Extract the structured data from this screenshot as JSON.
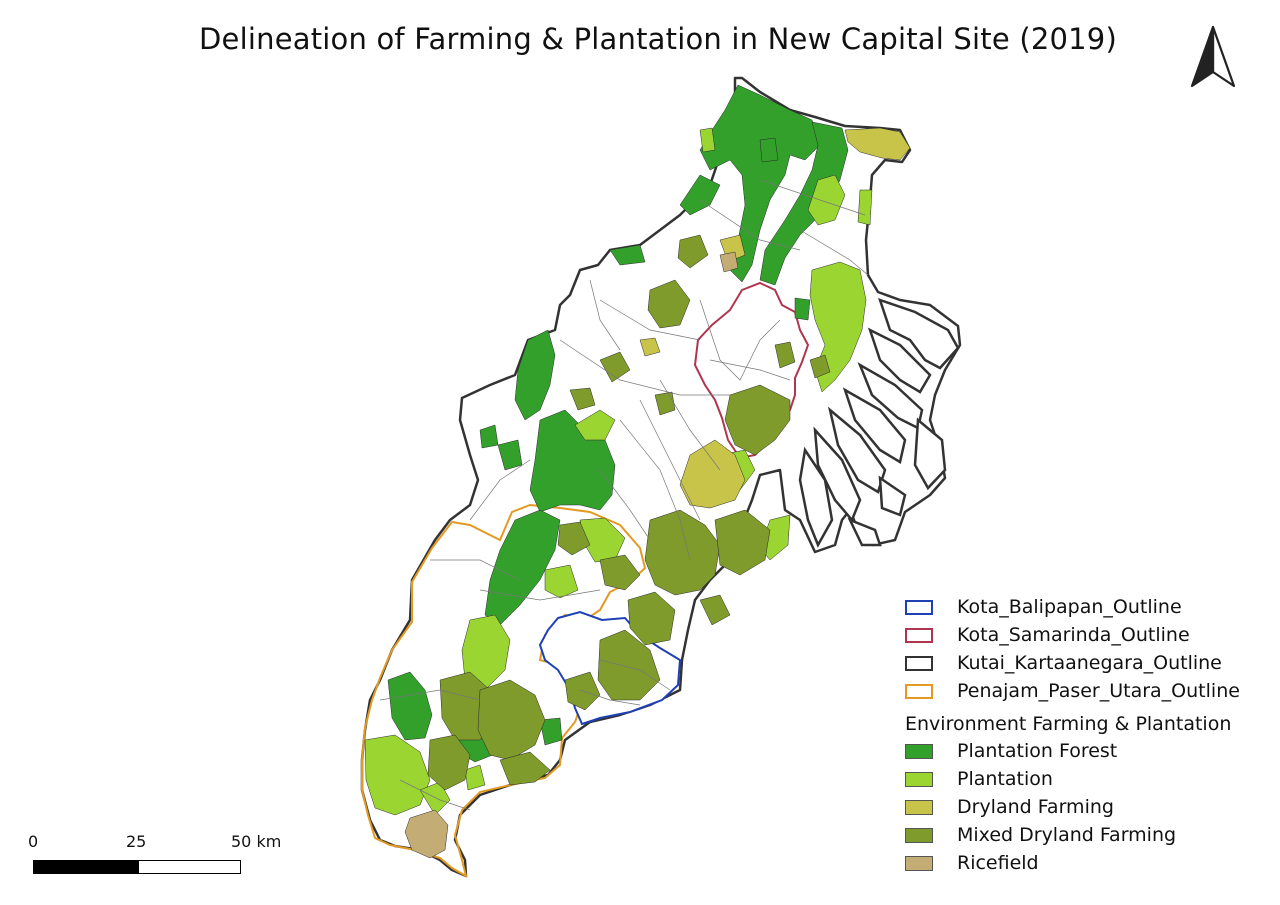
{
  "map": {
    "title": "Delineation of Farming & Plantation in New Capital Site (2019)",
    "legend": {
      "outlines": [
        {
          "label": "Kota_Balipapan_Outline",
          "color": "#1f3fb5",
          "fill": "none"
        },
        {
          "label": "Kota_Samarinda_Outline",
          "color": "#b0354f",
          "fill": "none"
        },
        {
          "label": "Kutai_Kartaanegara_Outline",
          "color": "#333333",
          "fill": "none"
        },
        {
          "label": "Penajam_Paser_Utara_Outline",
          "color": "#e39a22",
          "fill": "none"
        }
      ],
      "group_title": "Environment Farming & Plantation",
      "classes": [
        {
          "label": "Plantation Forest",
          "color": "#33a02c"
        },
        {
          "label": "Plantation",
          "color": "#9bd531"
        },
        {
          "label": "Dryland Farming",
          "color": "#c8c44a"
        },
        {
          "label": "Mixed Dryland Farming",
          "color": "#7e9b2b"
        },
        {
          "label": "Ricefield",
          "color": "#c4ad74"
        }
      ]
    },
    "scale_bar": {
      "ticks": [
        "0",
        "25",
        "50 km"
      ]
    },
    "north_arrow": {
      "icon": "north-arrow-icon"
    }
  }
}
